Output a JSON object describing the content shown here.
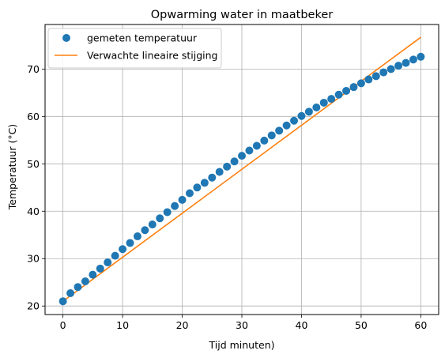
{
  "chart_data": {
    "type": "scatter",
    "title": "Opwarming water in maatbeker",
    "xlabel": "Tijd minuten)",
    "ylabel": "Temperatuur (°C)",
    "xlim": [
      -3,
      63
    ],
    "ylim": [
      18.2,
      79.4
    ],
    "xticks": [
      0,
      10,
      20,
      30,
      40,
      50,
      60
    ],
    "yticks": [
      20,
      30,
      40,
      50,
      60,
      70
    ],
    "grid": true,
    "legend_position": "top-left",
    "series": [
      {
        "name": "gemeten temperatuur",
        "kind": "scatter",
        "color": "#1f77b4",
        "x": [
          0,
          1.25,
          2.5,
          3.75,
          5,
          6.25,
          7.5,
          8.75,
          10,
          11.25,
          12.5,
          13.75,
          15,
          16.25,
          17.5,
          18.75,
          20,
          21.25,
          22.5,
          23.75,
          25,
          26.25,
          27.5,
          28.75,
          30,
          31.25,
          32.5,
          33.75,
          35,
          36.25,
          37.5,
          38.75,
          40,
          41.25,
          42.5,
          43.75,
          45,
          46.25,
          47.5,
          48.75,
          50,
          51.25,
          52.5,
          53.75,
          55,
          56.25,
          57.5,
          58.75,
          60
        ],
        "y": [
          21.0,
          22.7,
          24.0,
          25.2,
          26.6,
          27.9,
          29.2,
          30.6,
          32.0,
          33.3,
          34.7,
          36.0,
          37.2,
          38.5,
          39.8,
          41.1,
          42.4,
          43.8,
          45.0,
          46.0,
          47.1,
          48.3,
          49.4,
          50.5,
          51.7,
          52.8,
          53.8,
          54.9,
          56.0,
          57.0,
          58.1,
          59.1,
          60.1,
          61.0,
          61.9,
          62.9,
          63.7,
          64.6,
          65.4,
          66.2,
          67.0,
          67.8,
          68.5,
          69.3,
          70.0,
          70.7,
          71.3,
          72.0,
          72.6
        ]
      },
      {
        "name": "Verwachte lineaire stijging",
        "kind": "line",
        "color": "#ff7f0e",
        "x": [
          0,
          60
        ],
        "y": [
          21.0,
          76.7
        ]
      }
    ]
  }
}
